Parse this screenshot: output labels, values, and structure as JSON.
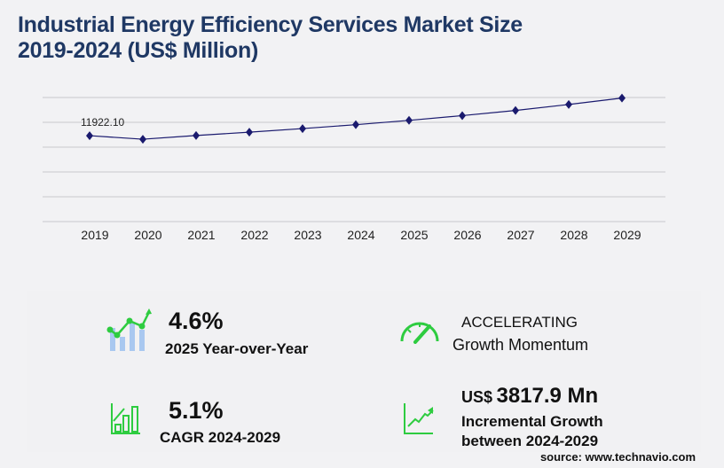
{
  "title": {
    "line1": "Industrial Energy Efficiency Services Market Size",
    "line2": "2019-2024 (US$ Million)"
  },
  "chart_data": {
    "type": "line",
    "categories": [
      "2019",
      "2020",
      "2021",
      "2022",
      "2023",
      "2024",
      "2025",
      "2026",
      "2027",
      "2028",
      "2029"
    ],
    "series": [
      {
        "values": [
          11922.1,
          11414,
          11950,
          12430,
          12940,
          13500,
          14121,
          14800,
          15540,
          16400,
          17318
        ]
      }
    ],
    "data_labels": [
      {
        "category": "2019",
        "text": "11922.10"
      }
    ],
    "ylim": [
      -400,
      17400
    ],
    "grid": true,
    "line_color": "#1a1a6e",
    "marker": "diamond"
  },
  "stats": {
    "yoy": {
      "value": "4.6%",
      "label": "2025 Year-over-Year"
    },
    "momentum": {
      "value": "ACCELERATING",
      "label": "Growth Momentum"
    },
    "cagr": {
      "value": "5.1%",
      "label": "CAGR 2024-2029"
    },
    "incremental": {
      "prefix": "US$",
      "value": "3817.9 Mn",
      "label1": "Incremental Growth",
      "label2": "between 2024-2029"
    }
  },
  "source": "source: www.technavio.com",
  "colors": {
    "title": "#1f3864",
    "accent": "#2ecc40",
    "bars": "#a9c8f0"
  }
}
